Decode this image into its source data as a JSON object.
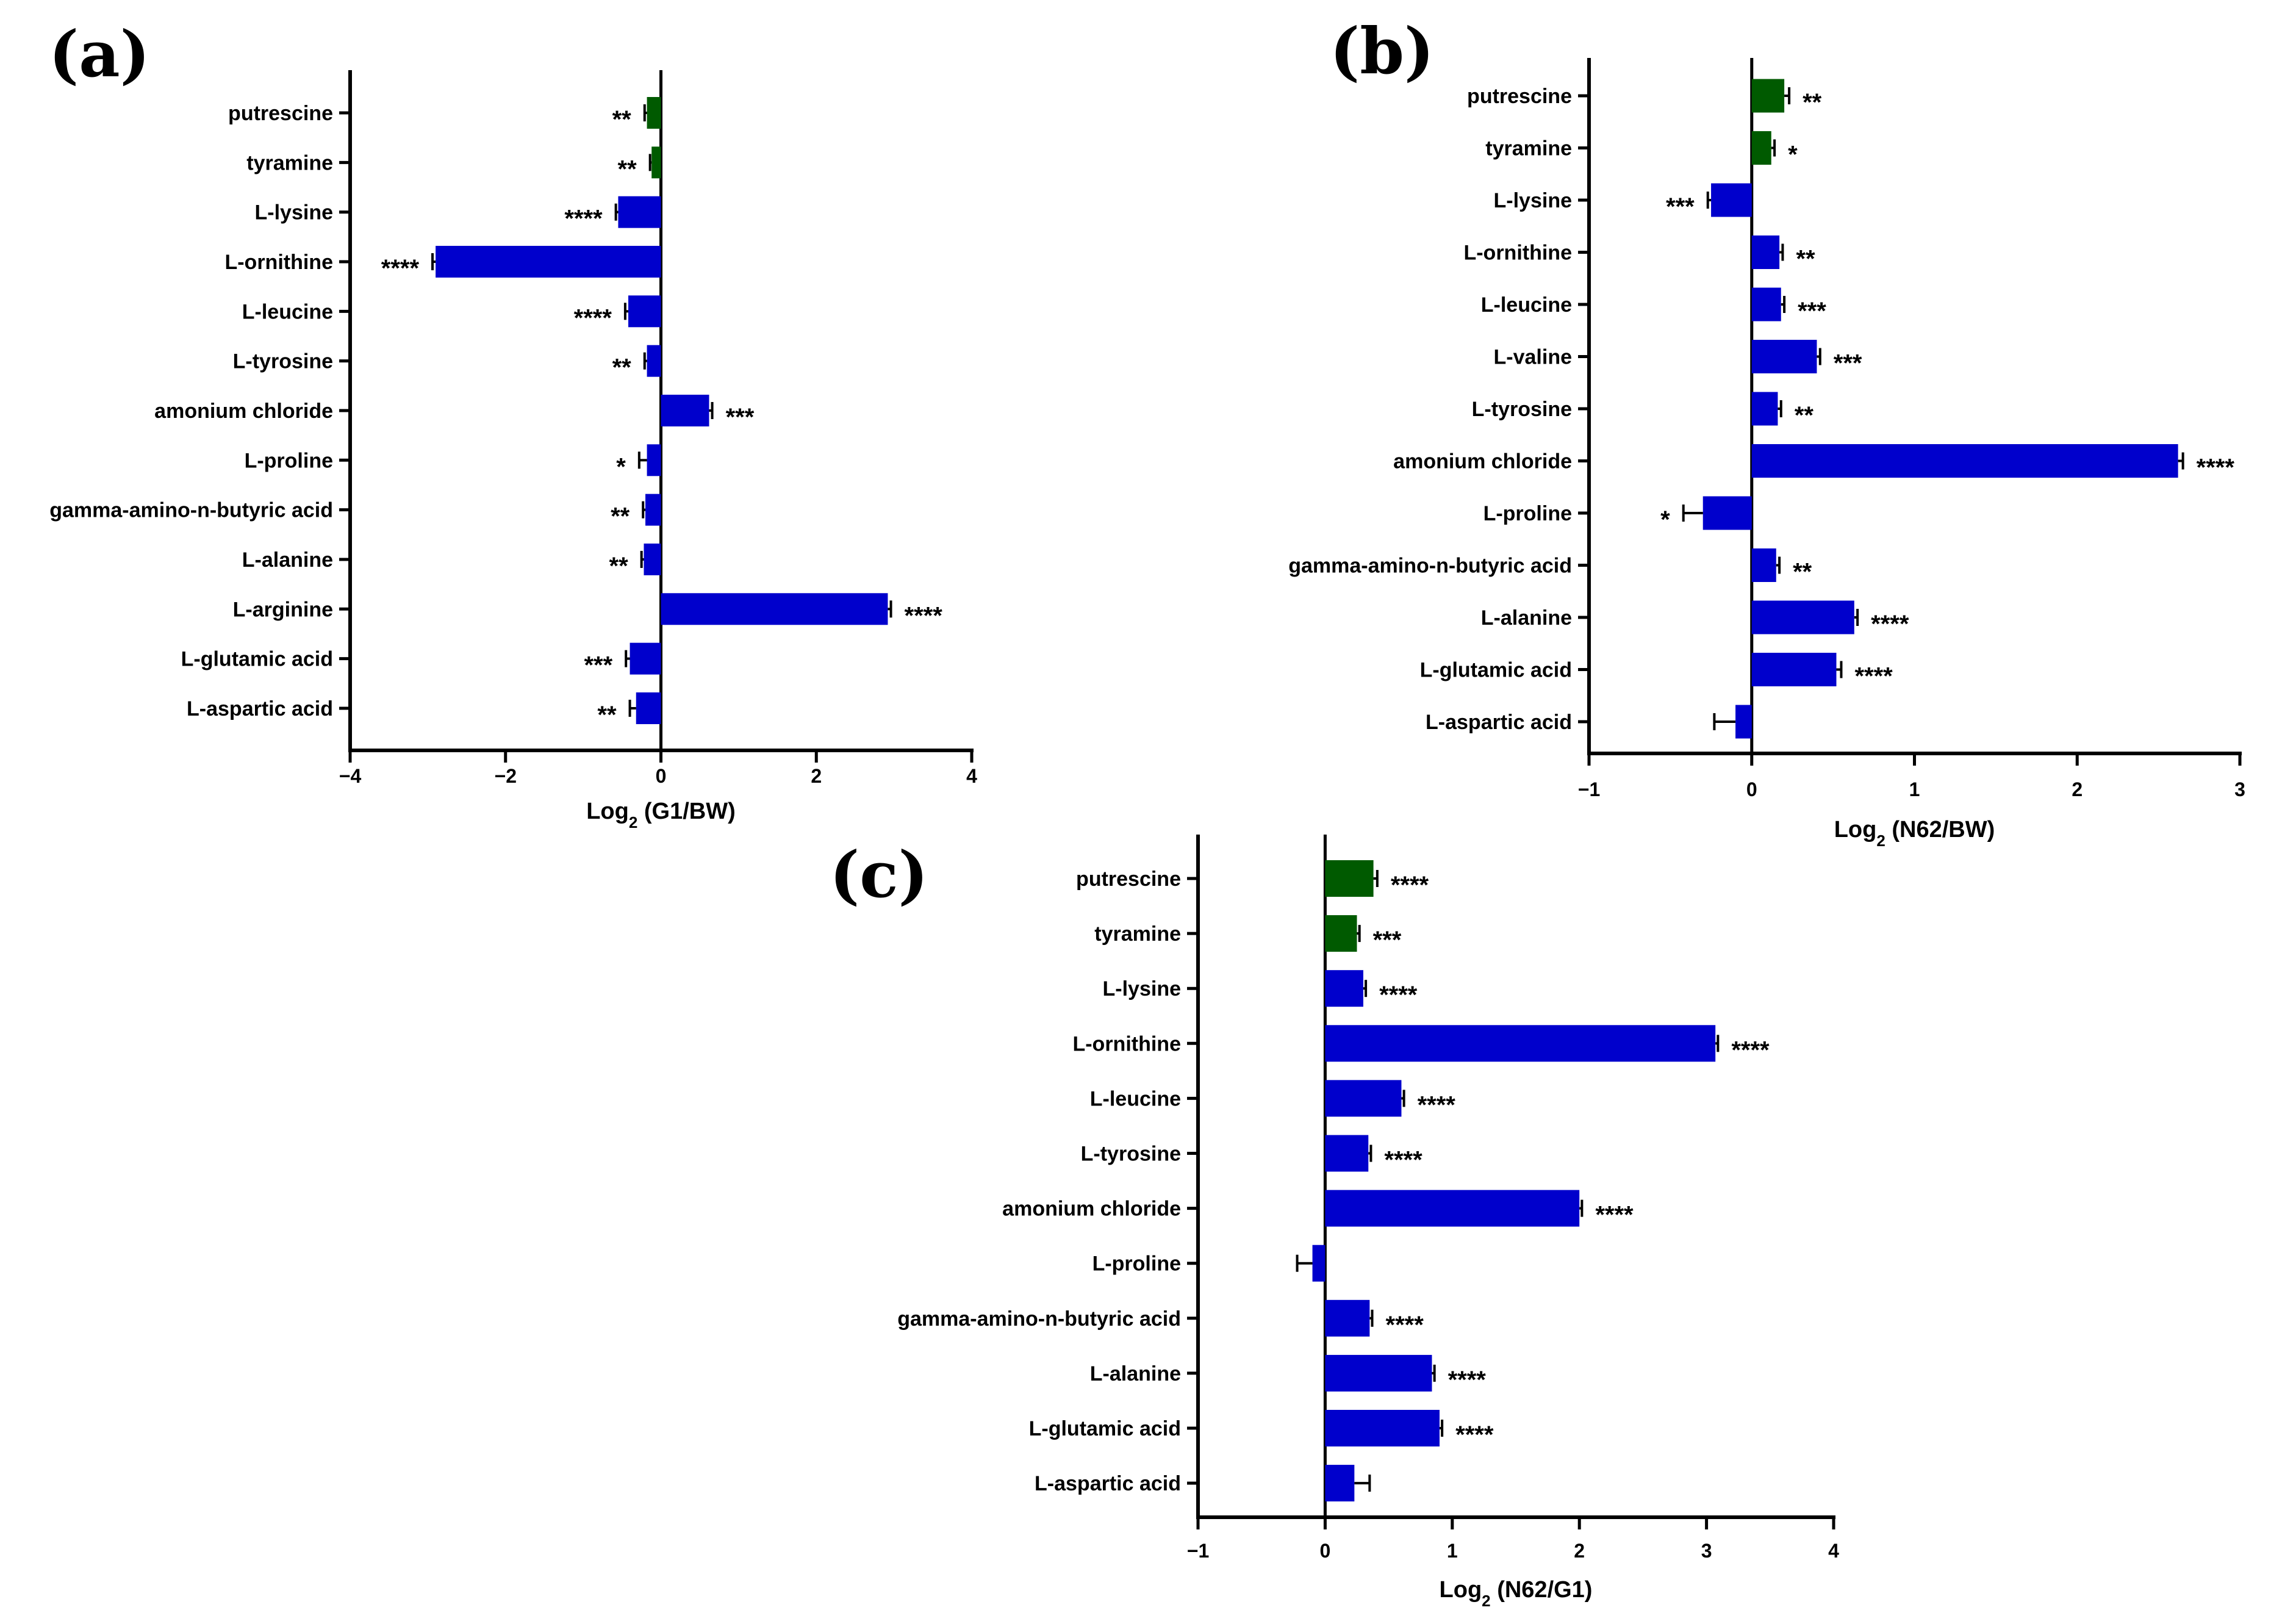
{
  "colors": {
    "green": "#005a00",
    "blue": "#0000cc",
    "axis": "#000000"
  },
  "chart_data": [
    {
      "type": "bar",
      "orientation": "horizontal",
      "panel_label": "(a)",
      "xlabel_main": "Log",
      "xlabel_sub": "2",
      "xlabel_rest": " (G1/BW)",
      "xlim": [
        -4,
        4
      ],
      "xticks": [
        -4,
        -2,
        0,
        2,
        4
      ],
      "xtick_labels": [
        "−4",
        "−2",
        "0",
        "2",
        "4"
      ],
      "categories": [
        "putrescine",
        "tyramine",
        "L-lysine",
        "L-ornithine",
        "L-leucine",
        "L-tyrosine",
        "amonium chloride",
        "L-proline",
        "gamma-amino-n-butyric acid",
        "L-alanine",
        "L-arginine",
        "L-glutamic acid",
        "L-aspartic acid"
      ],
      "values": [
        -0.18,
        -0.12,
        -0.55,
        -2.9,
        -0.42,
        -0.18,
        0.62,
        -0.18,
        -0.2,
        -0.22,
        2.92,
        -0.4,
        -0.32
      ],
      "errors": [
        0.03,
        0.02,
        0.03,
        0.04,
        0.04,
        0.03,
        0.04,
        0.1,
        0.03,
        0.03,
        0.04,
        0.05,
        0.08
      ],
      "colors": [
        "green",
        "green",
        "blue",
        "blue",
        "blue",
        "blue",
        "blue",
        "blue",
        "blue",
        "blue",
        "blue",
        "blue",
        "blue"
      ],
      "significance": [
        "**",
        "**",
        "****",
        "****",
        "****",
        "**",
        "***",
        "*",
        "**",
        "**",
        "****",
        "***",
        "**"
      ]
    },
    {
      "type": "bar",
      "orientation": "horizontal",
      "panel_label": "(b)",
      "xlabel_main": "Log",
      "xlabel_sub": "2",
      "xlabel_rest": " (N62/BW)",
      "xlim": [
        -1,
        3
      ],
      "xticks": [
        -1,
        0,
        1,
        2,
        3
      ],
      "xtick_labels": [
        "−1",
        "0",
        "1",
        "2",
        "3"
      ],
      "categories": [
        "putrescine",
        "tyramine",
        "L-lysine",
        "L-ornithine",
        "L-leucine",
        "L-valine",
        "L-tyrosine",
        "amonium chloride",
        "L-proline",
        "gamma-amino-n-butyric acid",
        "L-alanine",
        "L-glutamic acid",
        "L-aspartic acid"
      ],
      "values": [
        0.2,
        0.12,
        -0.25,
        0.17,
        0.18,
        0.4,
        0.16,
        2.62,
        -0.3,
        0.15,
        0.63,
        0.52,
        -0.1
      ],
      "errors": [
        0.03,
        0.02,
        0.02,
        0.02,
        0.02,
        0.02,
        0.02,
        0.03,
        0.12,
        0.02,
        0.02,
        0.03,
        0.13
      ],
      "colors": [
        "green",
        "green",
        "blue",
        "blue",
        "blue",
        "blue",
        "blue",
        "blue",
        "blue",
        "blue",
        "blue",
        "blue",
        "blue"
      ],
      "significance": [
        "**",
        "*",
        "***",
        "**",
        "***",
        "***",
        "**",
        "****",
        "*",
        "**",
        "****",
        "****",
        ""
      ]
    },
    {
      "type": "bar",
      "orientation": "horizontal",
      "panel_label": "(c)",
      "xlabel_main": "Log",
      "xlabel_sub": "2",
      "xlabel_rest": " (N62/G1)",
      "xlim": [
        -1,
        4
      ],
      "xticks": [
        -1,
        0,
        1,
        2,
        3,
        4
      ],
      "xtick_labels": [
        "−1",
        "0",
        "1",
        "2",
        "3",
        "4"
      ],
      "categories": [
        "putrescine",
        "tyramine",
        "L-lysine",
        "L-ornithine",
        "L-leucine",
        "L-tyrosine",
        "amonium chloride",
        "L-proline",
        "gamma-amino-n-butyric acid",
        "L-alanine",
        "L-glutamic acid",
        "L-aspartic acid"
      ],
      "values": [
        0.38,
        0.25,
        0.3,
        3.07,
        0.6,
        0.34,
        2.0,
        -0.1,
        0.35,
        0.84,
        0.9,
        0.23
      ],
      "errors": [
        0.03,
        0.02,
        0.02,
        0.02,
        0.02,
        0.02,
        0.02,
        0.12,
        0.02,
        0.02,
        0.02,
        0.12
      ],
      "colors": [
        "green",
        "green",
        "blue",
        "blue",
        "blue",
        "blue",
        "blue",
        "blue",
        "blue",
        "blue",
        "blue",
        "blue"
      ],
      "significance": [
        "****",
        "***",
        "****",
        "****",
        "****",
        "****",
        "****",
        "",
        "****",
        "****",
        "****",
        ""
      ]
    }
  ]
}
